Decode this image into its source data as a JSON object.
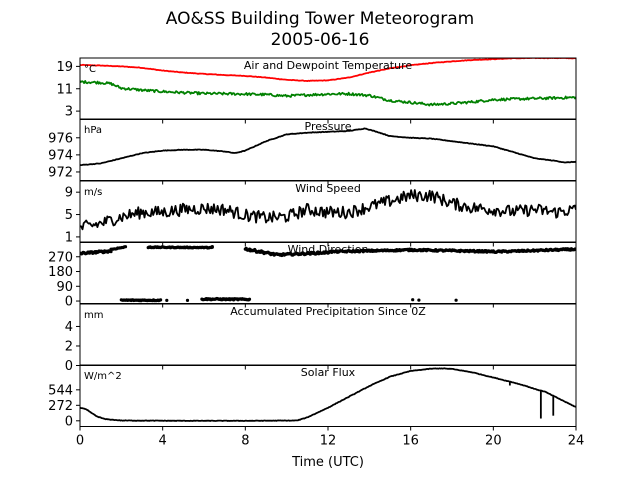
{
  "figure": {
    "title_line1": "AO&SS Building Tower Meteorogram",
    "title_line2": "2005-06-16",
    "xlabel": "Time (UTC)"
  },
  "chart_data": [
    {
      "id": "temperature",
      "type": "line",
      "title": "Air and Dewpoint Temperature",
      "unit": "°C",
      "ylim": [
        0,
        22
      ],
      "yticks": [
        3,
        11,
        19
      ],
      "xlim": [
        0,
        24
      ],
      "grid": false,
      "series": [
        {
          "color": "#ff0000",
          "x": [
            0,
            1,
            2,
            3,
            4,
            5,
            6,
            7,
            8,
            9,
            10,
            11,
            12,
            13,
            14,
            15,
            16,
            17,
            18,
            19,
            20,
            21,
            22,
            23,
            24
          ],
          "y": [
            19.5,
            19.3,
            19.0,
            18.5,
            17.5,
            16.8,
            16.3,
            15.9,
            15.6,
            15.0,
            14.2,
            13.8,
            14.0,
            15.0,
            16.8,
            18.3,
            19.4,
            20.2,
            20.8,
            21.3,
            21.6,
            21.9,
            22.0,
            22.0,
            21.9
          ]
        },
        {
          "color": "#008000",
          "x": [
            0,
            1,
            1.5,
            2,
            3,
            4,
            5,
            6,
            7,
            8,
            9,
            10,
            11,
            12,
            13,
            14,
            15,
            16,
            17,
            18,
            19,
            20,
            21,
            22,
            23,
            24
          ],
          "y": [
            13.5,
            13.2,
            12.8,
            11.2,
            10.5,
            10.0,
            9.6,
            9.3,
            9.2,
            9.1,
            8.9,
            8.4,
            8.8,
            9.1,
            9.2,
            8.6,
            6.8,
            6.1,
            5.3,
            5.7,
            6.3,
            7.1,
            7.3,
            7.5,
            7.7,
            7.9
          ]
        }
      ]
    },
    {
      "id": "pressure",
      "type": "line",
      "title": "Pressure",
      "unit": "hPa",
      "ylim": [
        971,
        978.2
      ],
      "yticks": [
        972,
        974,
        976
      ],
      "xlim": [
        0,
        24
      ],
      "series": [
        {
          "color": "#000000",
          "x": [
            0,
            1,
            2,
            3,
            4,
            5,
            6,
            7,
            7.5,
            8,
            9,
            10,
            11,
            12,
            13,
            13.8,
            14.5,
            15,
            16,
            17,
            18,
            19,
            20,
            21,
            22,
            23,
            23.5,
            24
          ],
          "y": [
            972.8,
            973.0,
            973.6,
            974.2,
            974.5,
            974.6,
            974.6,
            974.4,
            974.2,
            974.5,
            975.6,
            976.4,
            976.6,
            976.7,
            976.8,
            977.1,
            976.6,
            976.2,
            976.0,
            975.9,
            975.6,
            975.3,
            975.0,
            974.3,
            973.6,
            973.3,
            973.1,
            973.2
          ]
        }
      ]
    },
    {
      "id": "wind_speed",
      "type": "line",
      "title": "Wind Speed",
      "unit": "m/s",
      "ylim": [
        0,
        11
      ],
      "yticks": [
        1,
        5,
        9
      ],
      "xlim": [
        0,
        24
      ],
      "series": [
        {
          "color": "#000000",
          "noise": 1.1,
          "x": [
            0,
            1,
            2,
            3,
            4,
            5,
            6,
            7,
            8,
            9,
            10,
            11,
            12,
            13,
            14,
            15,
            16,
            17,
            18,
            19,
            20,
            21,
            22,
            23,
            24
          ],
          "y": [
            2.6,
            3.4,
            4.6,
            5.4,
            5.4,
            5.9,
            6.1,
            5.9,
            4.9,
            4.4,
            4.6,
            5.9,
            5.4,
            5.4,
            6.4,
            7.4,
            8.4,
            8.4,
            7.0,
            6.2,
            5.9,
            5.5,
            5.9,
            5.4,
            5.9
          ]
        }
      ]
    },
    {
      "id": "wind_direction",
      "type": "scatter",
      "title": "Wind Direction",
      "unit": "",
      "ylim": [
        -15,
        360
      ],
      "yticks": [
        0,
        90,
        180,
        270
      ],
      "xlim": [
        0,
        24
      ],
      "segments": [
        {
          "x0": 0.0,
          "x1": 1.5,
          "y0": 290,
          "y1": 305,
          "noise": 12,
          "n": 40
        },
        {
          "x0": 1.5,
          "x1": 2.2,
          "y0": 315,
          "y1": 330,
          "noise": 6,
          "n": 14
        },
        {
          "x0": 3.3,
          "x1": 6.4,
          "y0": 328,
          "y1": 326,
          "noise": 5,
          "n": 70
        },
        {
          "x0": 2.0,
          "x1": 3.9,
          "y0": 5,
          "y1": 5,
          "noise": 6,
          "n": 45
        },
        {
          "x0": 5.9,
          "x1": 8.2,
          "y0": 12,
          "y1": 10,
          "noise": 8,
          "n": 55
        },
        {
          "x0": 8.0,
          "x1": 9.6,
          "y0": 318,
          "y1": 280,
          "noise": 14,
          "n": 40
        },
        {
          "x0": 9.6,
          "x1": 12.0,
          "y0": 282,
          "y1": 296,
          "noise": 12,
          "n": 60
        },
        {
          "x0": 12.0,
          "x1": 16.0,
          "y0": 300,
          "y1": 312,
          "noise": 10,
          "n": 90
        },
        {
          "x0": 16.0,
          "x1": 20.0,
          "y0": 312,
          "y1": 302,
          "noise": 10,
          "n": 90
        },
        {
          "x0": 20.0,
          "x1": 24.0,
          "y0": 300,
          "y1": 316,
          "noise": 10,
          "n": 90
        }
      ],
      "points": [
        {
          "x": 4.2,
          "y": 4
        },
        {
          "x": 5.2,
          "y": 4
        },
        {
          "x": 16.1,
          "y": 8
        },
        {
          "x": 16.4,
          "y": 6
        },
        {
          "x": 18.2,
          "y": 5
        },
        {
          "x": 3.4,
          "y": 330
        },
        {
          "x": 6.4,
          "y": 332
        }
      ]
    },
    {
      "id": "precipitation",
      "type": "line",
      "title": "Accumulated Precipitation Since 0Z",
      "unit": "mm",
      "ylim": [
        0,
        6.3
      ],
      "yticks": [
        0,
        2,
        4
      ],
      "xlim": [
        0,
        24
      ],
      "series": [
        {
          "color": "#000000",
          "x": [
            0,
            24
          ],
          "y": [
            0,
            0
          ]
        }
      ]
    },
    {
      "id": "solar_flux",
      "type": "line",
      "title": "Solar Flux",
      "unit": "W/m^2",
      "ylim": [
        -100,
        980
      ],
      "yticks": [
        0,
        272,
        544
      ],
      "xlim": [
        0,
        24
      ],
      "series": [
        {
          "color": "#000000",
          "x": [
            0,
            0.3,
            0.8,
            1.2,
            2,
            5,
            8,
            10.5,
            11,
            12,
            13,
            14,
            15,
            16,
            17,
            17.5,
            18,
            19,
            20,
            21,
            21.5,
            22,
            22.5,
            23,
            23.5,
            24
          ],
          "y": [
            230,
            200,
            80,
            30,
            5,
            0,
            0,
            5,
            60,
            230,
            420,
            610,
            775,
            875,
            915,
            920,
            910,
            850,
            760,
            670,
            620,
            560,
            510,
            420,
            330,
            240
          ]
        }
      ],
      "spikes": [
        {
          "x": 20.8,
          "y": 620
        },
        {
          "x": 22.3,
          "y": 40
        },
        {
          "x": 22.9,
          "y": 90
        }
      ]
    }
  ],
  "xaxis": {
    "ticks": [
      0,
      4,
      8,
      12,
      16,
      20,
      24
    ]
  }
}
